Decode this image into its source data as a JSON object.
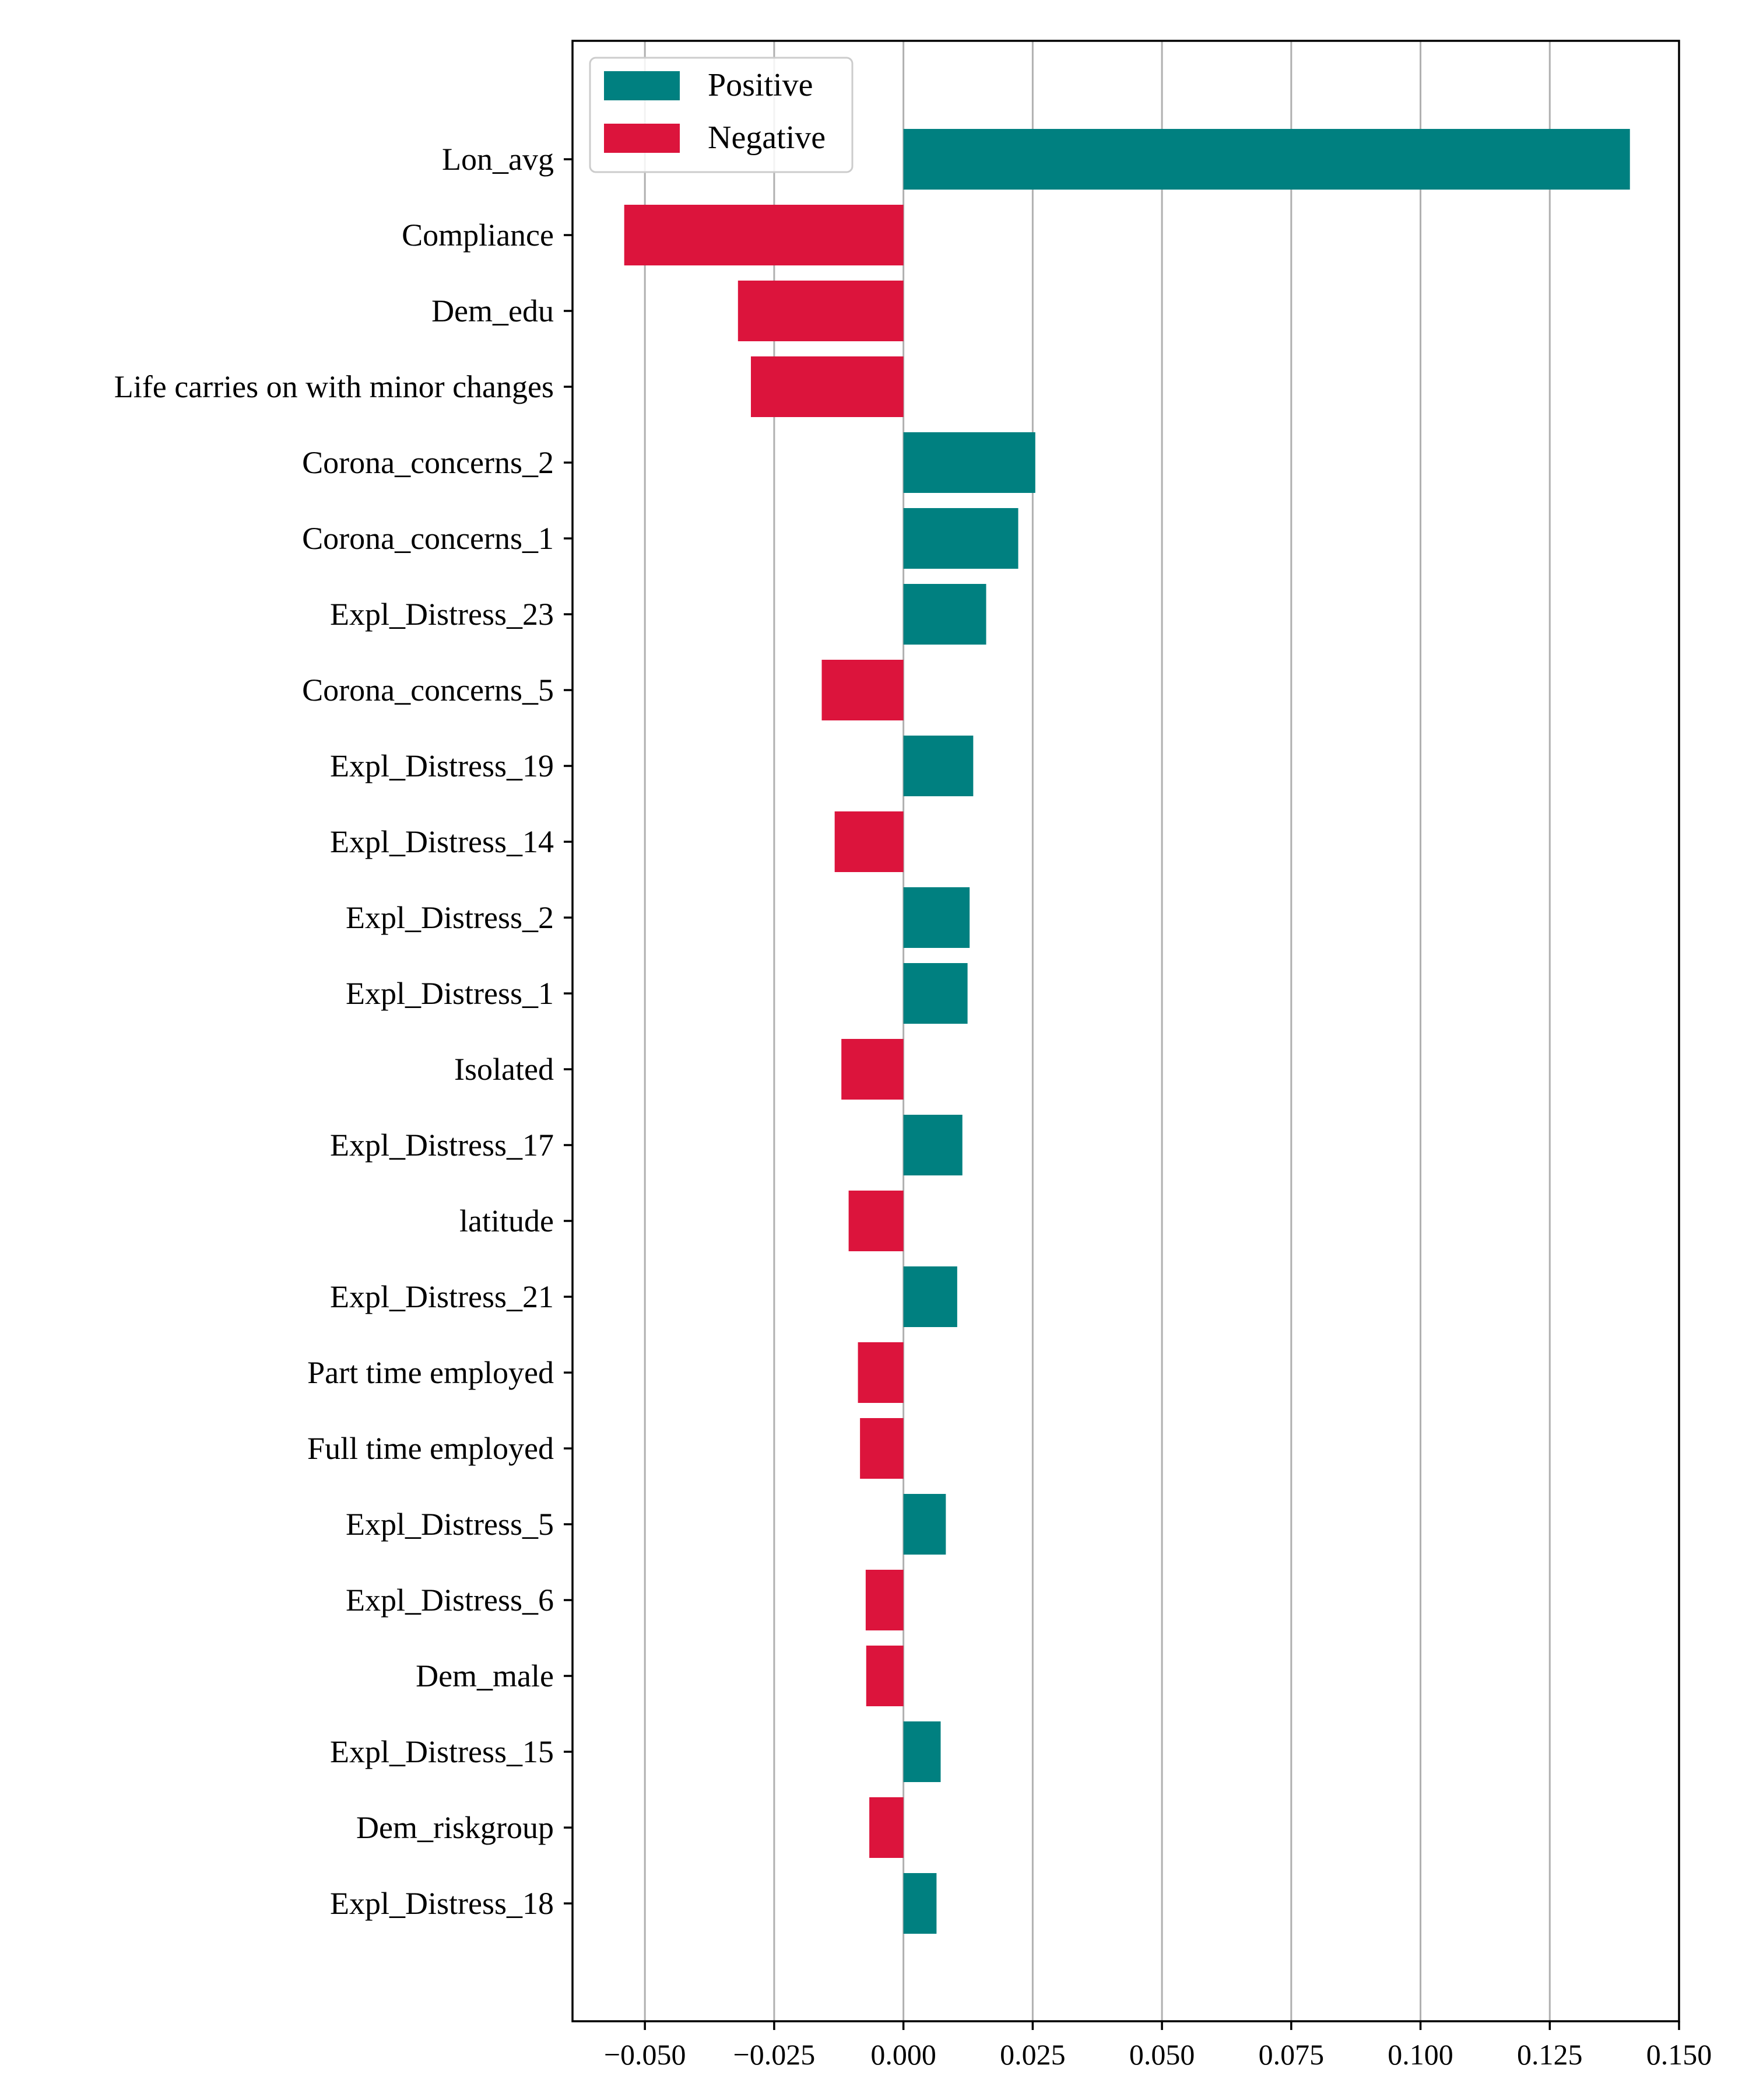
{
  "chart_data": {
    "type": "bar",
    "orientation": "horizontal",
    "title": "",
    "xlabel": "",
    "ylabel": "",
    "xlim": [
      -0.064,
      0.15
    ],
    "xticks": [
      -0.05,
      -0.025,
      0.0,
      0.025,
      0.05,
      0.075,
      0.1,
      0.125,
      0.15
    ],
    "xtick_labels": [
      "−0.050",
      "−0.025",
      "0.000",
      "0.025",
      "0.050",
      "0.075",
      "0.100",
      "0.125",
      "0.150"
    ],
    "grid": "vertical",
    "legend": {
      "placement": "top-left",
      "entries": [
        {
          "label": "Positive",
          "color": "#008080"
        },
        {
          "label": "Negative",
          "color": "#DC143C"
        }
      ]
    },
    "colors": {
      "positive": "#008080",
      "negative": "#DC143C"
    },
    "categories": [
      "Lon_avg",
      "Compliance",
      "Dem_edu",
      "Life carries on with minor changes",
      "Corona_concerns_2",
      "Corona_concerns_1",
      "Expl_Distress_23",
      "Corona_concerns_5",
      "Expl_Distress_19",
      "Expl_Distress_14",
      "Expl_Distress_2",
      "Expl_Distress_1",
      "Isolated",
      "Expl_Distress_17",
      "latitude",
      "Expl_Distress_21",
      "Part time employed",
      "Full time employed",
      "Expl_Distress_5",
      "Expl_Distress_6",
      "Dem_male",
      "Expl_Distress_15",
      "Dem_riskgroup",
      "Expl_Distress_18"
    ],
    "values": [
      0.1405,
      -0.054,
      -0.032,
      -0.0295,
      0.0255,
      0.0222,
      0.016,
      -0.0158,
      0.0135,
      -0.0133,
      0.0128,
      0.0124,
      -0.012,
      0.0114,
      -0.0106,
      0.0104,
      -0.0088,
      -0.0084,
      0.0082,
      -0.0073,
      -0.0072,
      0.0072,
      -0.0066,
      0.0064
    ]
  }
}
